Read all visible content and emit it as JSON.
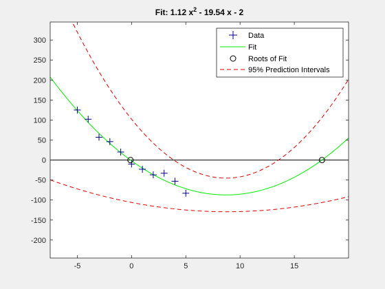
{
  "chart_data": {
    "type": "scatter",
    "title": "Fit: 1.12 x",
    "title_exp": "2",
    "title_tail": " - 19.54 x - 2",
    "xlim": [
      -7.5,
      20
    ],
    "ylim": [
      -245,
      345
    ],
    "xticks": [
      -5,
      0,
      5,
      10,
      15
    ],
    "yticks": [
      -200,
      -150,
      -100,
      -50,
      0,
      50,
      100,
      150,
      200,
      250,
      300
    ],
    "grid": false,
    "legend_position": "top-right",
    "fit_coefficients": [
      1.12,
      -19.54,
      -2
    ],
    "series": [
      {
        "name": "Data",
        "kind": "points",
        "marker": "+",
        "color": "#00008b",
        "x": [
          -5,
          -4,
          -3,
          -2,
          -1,
          0,
          1,
          2,
          3,
          4,
          5
        ],
        "y": [
          125,
          102,
          57,
          46,
          20,
          -10,
          -23,
          -37,
          -33,
          -53,
          -83
        ]
      },
      {
        "name": "Fit",
        "kind": "line",
        "color": "#00ee00",
        "style": "solid"
      },
      {
        "name": "Roots of Fit",
        "kind": "points",
        "marker": "o",
        "color": "#000000",
        "x": [
          -0.1,
          17.55
        ],
        "y": [
          0,
          0
        ]
      },
      {
        "name": "95% Prediction Intervals",
        "kind": "band",
        "color": "#dd0000",
        "style": "dashed",
        "vertex_x": 8.7,
        "half_width_at_vertex": 42,
        "growth": 0.82
      }
    ]
  }
}
